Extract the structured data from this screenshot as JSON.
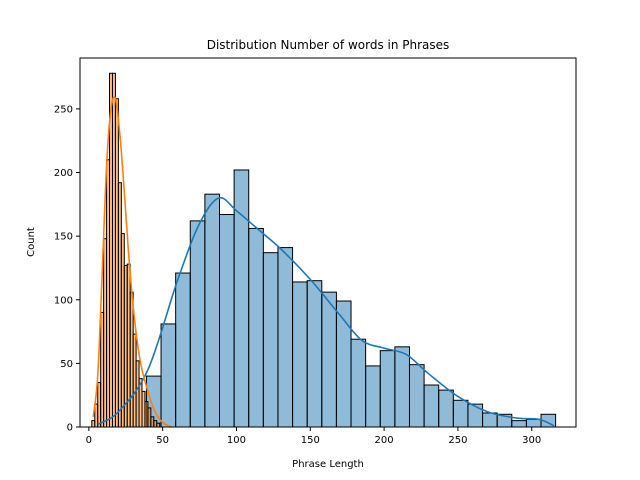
{
  "chart_data": {
    "type": "histogram",
    "title": "Distribution Number of words in Phrases",
    "xlabel": "Phrase Length",
    "ylabel": "Count",
    "xlim": [
      -6,
      330
    ],
    "ylim": [
      0,
      290
    ],
    "xticks": [
      0,
      50,
      100,
      150,
      200,
      250,
      300
    ],
    "yticks": [
      0,
      50,
      100,
      150,
      200,
      250
    ],
    "grid": false,
    "series": [
      {
        "color": "#1f77b4",
        "bin_width": 9.9,
        "bin_start": 39.0,
        "values": [
          40,
          81,
          121,
          162,
          183,
          167,
          202,
          156,
          137,
          141,
          114,
          115,
          106,
          99,
          69,
          48,
          60,
          63,
          49,
          33,
          29,
          21,
          18,
          11,
          10,
          5,
          6,
          10
        ],
        "kde_x": [
          6,
          20,
          40,
          60,
          75,
          88,
          100,
          115,
          130,
          150,
          170,
          185,
          200,
          215,
          230,
          250,
          270,
          290,
          305,
          315
        ],
        "kde_y": [
          2,
          12,
          45,
          115,
          160,
          180,
          170,
          155,
          140,
          116,
          88,
          68,
          62,
          57,
          42,
          24,
          12,
          7,
          6,
          1
        ]
      },
      {
        "color": "#ff7f0e",
        "bin_width": 2.0,
        "bin_start": 2.0,
        "values": [
          5,
          18,
          35,
          90,
          148,
          210,
          278,
          278,
          258,
          192,
          152,
          127,
          128,
          106,
          73,
          52,
          38,
          28,
          20,
          15,
          8,
          5,
          3
        ],
        "kde_x": [
          3,
          6,
          9,
          12,
          15,
          18,
          21,
          24,
          27,
          30,
          33,
          36,
          40,
          44,
          48,
          52,
          56
        ],
        "kde_y": [
          8,
          40,
          120,
          205,
          250,
          258,
          230,
          185,
          135,
          95,
          65,
          45,
          28,
          14,
          6,
          2,
          0
        ]
      }
    ]
  }
}
